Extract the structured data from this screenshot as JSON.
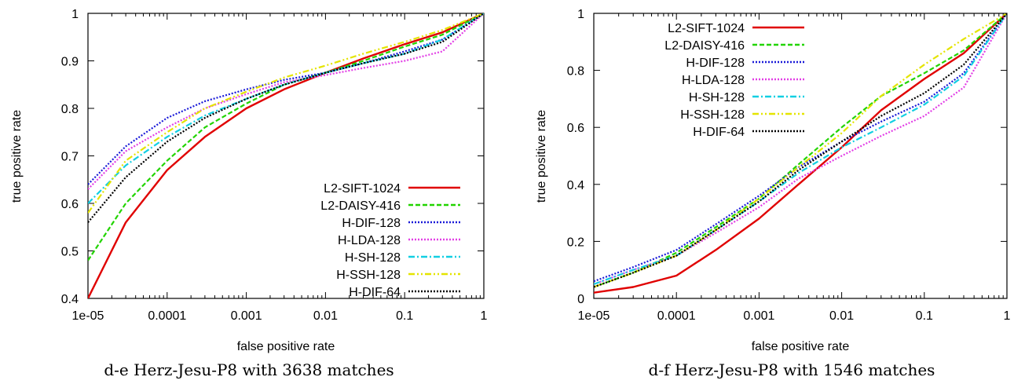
{
  "colors": {
    "L2-SIFT-1024": "#e00000",
    "L2-DAISY-416": "#22d400",
    "H-DIF-128": "#1a1ad8",
    "H-LDA-128": "#e23ee6",
    "H-SH-128": "#12cfe2",
    "H-SSH-128": "#e4e400",
    "H-DIF-64": "#000000"
  },
  "chart_data": [
    {
      "type": "line",
      "caption": "d-e Herz-Jesu-P8 with 3638 matches",
      "xlabel": "false positive rate",
      "ylabel": "true positive rate",
      "xscale": "log",
      "xlim": [
        1e-05,
        1
      ],
      "ylim": [
        0.4,
        1
      ],
      "xticks": [
        1e-05,
        0.0001,
        0.001,
        0.01,
        0.1,
        1
      ],
      "xtick_labels": [
        "1e-05",
        "0.0001",
        "0.001",
        "0.01",
        "0.1",
        "1"
      ],
      "yticks": [
        0.4,
        0.5,
        0.6,
        0.7,
        0.8,
        0.9,
        1
      ],
      "ytick_labels": [
        "0.4",
        "0.5",
        "0.6",
        "0.7",
        "0.8",
        "0.9",
        "1"
      ],
      "legend_position": "bottom-right",
      "x": [
        1e-05,
        3e-05,
        0.0001,
        0.0003,
        0.001,
        0.003,
        0.01,
        0.03,
        0.1,
        0.3,
        1
      ],
      "series": [
        {
          "name": "L2-SIFT-1024",
          "style": "solid",
          "values": [
            0.4,
            0.56,
            0.67,
            0.74,
            0.8,
            0.84,
            0.875,
            0.905,
            0.935,
            0.96,
            1.0
          ]
        },
        {
          "name": "L2-DAISY-416",
          "style": "dashed",
          "values": [
            0.48,
            0.6,
            0.69,
            0.76,
            0.81,
            0.85,
            0.875,
            0.9,
            0.93,
            0.955,
            1.0
          ]
        },
        {
          "name": "H-DIF-128",
          "style": "dotted",
          "values": [
            0.64,
            0.72,
            0.78,
            0.815,
            0.84,
            0.86,
            0.875,
            0.895,
            0.92,
            0.945,
            1.0
          ]
        },
        {
          "name": "H-LDA-128",
          "style": "dotted",
          "values": [
            0.63,
            0.71,
            0.76,
            0.8,
            0.83,
            0.855,
            0.87,
            0.885,
            0.9,
            0.92,
            1.0
          ]
        },
        {
          "name": "H-SH-128",
          "style": "dashdot",
          "values": [
            0.6,
            0.68,
            0.74,
            0.785,
            0.82,
            0.85,
            0.875,
            0.895,
            0.915,
            0.945,
            1.0
          ]
        },
        {
          "name": "H-SSH-128",
          "style": "dashdotdot",
          "values": [
            0.58,
            0.69,
            0.75,
            0.8,
            0.835,
            0.865,
            0.89,
            0.915,
            0.94,
            0.965,
            1.0
          ]
        },
        {
          "name": "H-DIF-64",
          "style": "dotted",
          "values": [
            0.56,
            0.655,
            0.73,
            0.78,
            0.82,
            0.85,
            0.875,
            0.895,
            0.915,
            0.94,
            1.0
          ]
        }
      ]
    },
    {
      "type": "line",
      "caption": "d-f Herz-Jesu-P8 with 1546 matches",
      "xlabel": "false positive rate",
      "ylabel": "true positive rate",
      "xscale": "log",
      "xlim": [
        1e-05,
        1
      ],
      "ylim": [
        0,
        1
      ],
      "xticks": [
        1e-05,
        0.0001,
        0.001,
        0.01,
        0.1,
        1
      ],
      "xtick_labels": [
        "1e-05",
        "0.0001",
        "0.001",
        "0.01",
        "0.1",
        "1"
      ],
      "yticks": [
        0,
        0.2,
        0.4,
        0.6,
        0.8,
        1
      ],
      "ytick_labels": [
        "0",
        "0.2",
        "0.4",
        "0.6",
        "0.8",
        "1"
      ],
      "legend_position": "top-left",
      "x": [
        1e-05,
        3e-05,
        0.0001,
        0.0003,
        0.001,
        0.003,
        0.01,
        0.03,
        0.1,
        0.3,
        1
      ],
      "series": [
        {
          "name": "L2-SIFT-1024",
          "style": "solid",
          "values": [
            0.02,
            0.04,
            0.08,
            0.17,
            0.28,
            0.4,
            0.53,
            0.66,
            0.77,
            0.86,
            1.0
          ]
        },
        {
          "name": "L2-DAISY-416",
          "style": "dashed",
          "values": [
            0.04,
            0.09,
            0.16,
            0.25,
            0.35,
            0.47,
            0.6,
            0.71,
            0.79,
            0.87,
            1.0
          ]
        },
        {
          "name": "H-DIF-128",
          "style": "dotted",
          "values": [
            0.06,
            0.11,
            0.17,
            0.26,
            0.36,
            0.46,
            0.55,
            0.62,
            0.69,
            0.79,
            1.0
          ]
        },
        {
          "name": "H-LDA-128",
          "style": "dotted",
          "values": [
            0.05,
            0.1,
            0.15,
            0.23,
            0.32,
            0.42,
            0.5,
            0.57,
            0.64,
            0.74,
            1.0
          ]
        },
        {
          "name": "H-SH-128",
          "style": "dashdot",
          "values": [
            0.05,
            0.1,
            0.15,
            0.24,
            0.34,
            0.44,
            0.53,
            0.6,
            0.68,
            0.78,
            1.0
          ]
        },
        {
          "name": "H-SSH-128",
          "style": "dashdotdot",
          "values": [
            0.04,
            0.09,
            0.15,
            0.24,
            0.35,
            0.46,
            0.58,
            0.71,
            0.82,
            0.91,
            1.0
          ]
        },
        {
          "name": "H-DIF-64",
          "style": "dotted",
          "values": [
            0.04,
            0.09,
            0.15,
            0.24,
            0.34,
            0.45,
            0.55,
            0.64,
            0.72,
            0.82,
            1.0
          ]
        }
      ]
    }
  ]
}
